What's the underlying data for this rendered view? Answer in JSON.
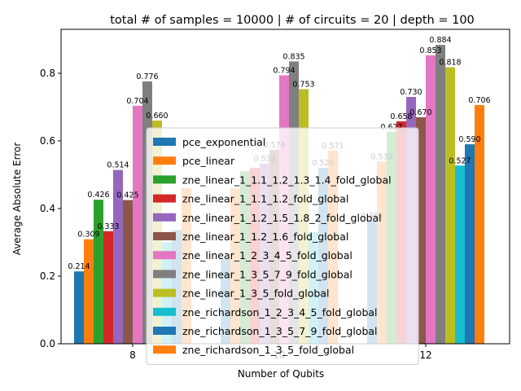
{
  "chart_data": {
    "type": "bar",
    "title": "total # of samples = 10000 | # of circuits = 20 | depth = 100",
    "xlabel": "Number of Qubits",
    "ylabel": "Average Absolute Error",
    "categories": [
      "8",
      "10",
      "12"
    ],
    "ylim": [
      0,
      0.93
    ],
    "yticks": [
      "0.0",
      "0.2",
      "0.4",
      "0.6",
      "0.8"
    ],
    "legend_position": "lower-center",
    "grid": false,
    "series": [
      {
        "name": "pce_exponential",
        "color": "#1f77b4",
        "values": [
          0.214,
          0.25,
          0.364
        ],
        "labels": [
          "0.214",
          "",
          "0.364"
        ]
      },
      {
        "name": "pce_linear",
        "color": "#ff7f0e",
        "values": [
          0.309,
          0.46,
          0.539
        ],
        "labels": [
          "0.309",
          "",
          "0.539"
        ]
      },
      {
        "name": "zne_linear_1_1.1_1.2_1.3_1.4_fold_global",
        "color": "#2ca02c",
        "values": [
          0.426,
          0.51,
          0.627
        ],
        "labels": [
          "0.426",
          "",
          "0.627"
        ]
      },
      {
        "name": "zne_linear_1_1.1_1.2_fold_global",
        "color": "#d62728",
        "values": [
          0.333,
          0.52,
          0.658
        ],
        "labels": [
          "0.333",
          "",
          "0.658"
        ]
      },
      {
        "name": "zne_linear_1_1.2_1.5_1.8_2_fold_global",
        "color": "#9467bd",
        "values": [
          0.514,
          0.533,
          0.73
        ],
        "labels": [
          "0.514",
          "0.533",
          "0.730"
        ]
      },
      {
        "name": "zne_linear_1_1.2_1.6_fold_global",
        "color": "#8c564b",
        "values": [
          0.425,
          0.574,
          0.67
        ],
        "labels": [
          "0.425",
          "0.574",
          "0.670"
        ]
      },
      {
        "name": "zne_linear_1_2_3_4_5_fold_global",
        "color": "#e377c2",
        "values": [
          0.704,
          0.794,
          0.853
        ],
        "labels": [
          "0.704",
          "0.794",
          "0.853"
        ]
      },
      {
        "name": "zne_linear_1_3_5_7_9_fold_global",
        "color": "#7f7f7f",
        "values": [
          0.776,
          0.835,
          0.884
        ],
        "labels": [
          "0.776",
          "0.835",
          "0.884"
        ]
      },
      {
        "name": "zne_linear_1_3_5_fold_global",
        "color": "#bcbd22",
        "values": [
          0.66,
          0.753,
          0.818
        ],
        "labels": [
          "0.660",
          "0.753",
          "0.818"
        ]
      },
      {
        "name": "zne_richardson_1_2_3_4_5_fold_global",
        "color": "#17becf",
        "values": [
          0.3,
          0.33,
          0.527
        ],
        "labels": [
          "",
          "",
          "0.527"
        ]
      },
      {
        "name": "zne_richardson_1_3_5_7_9_fold_global",
        "color": "#1f77b4",
        "values": [
          0.336,
          0.52,
          0.59
        ],
        "labels": [
          "",
          "0.520",
          "0.590"
        ]
      },
      {
        "name": "zne_richardson_1_3_5_fold_global",
        "color": "#ff7f0e",
        "values": [
          0.46,
          0.571,
          0.706
        ],
        "labels": [
          "",
          "0.571",
          "0.706"
        ]
      }
    ]
  }
}
